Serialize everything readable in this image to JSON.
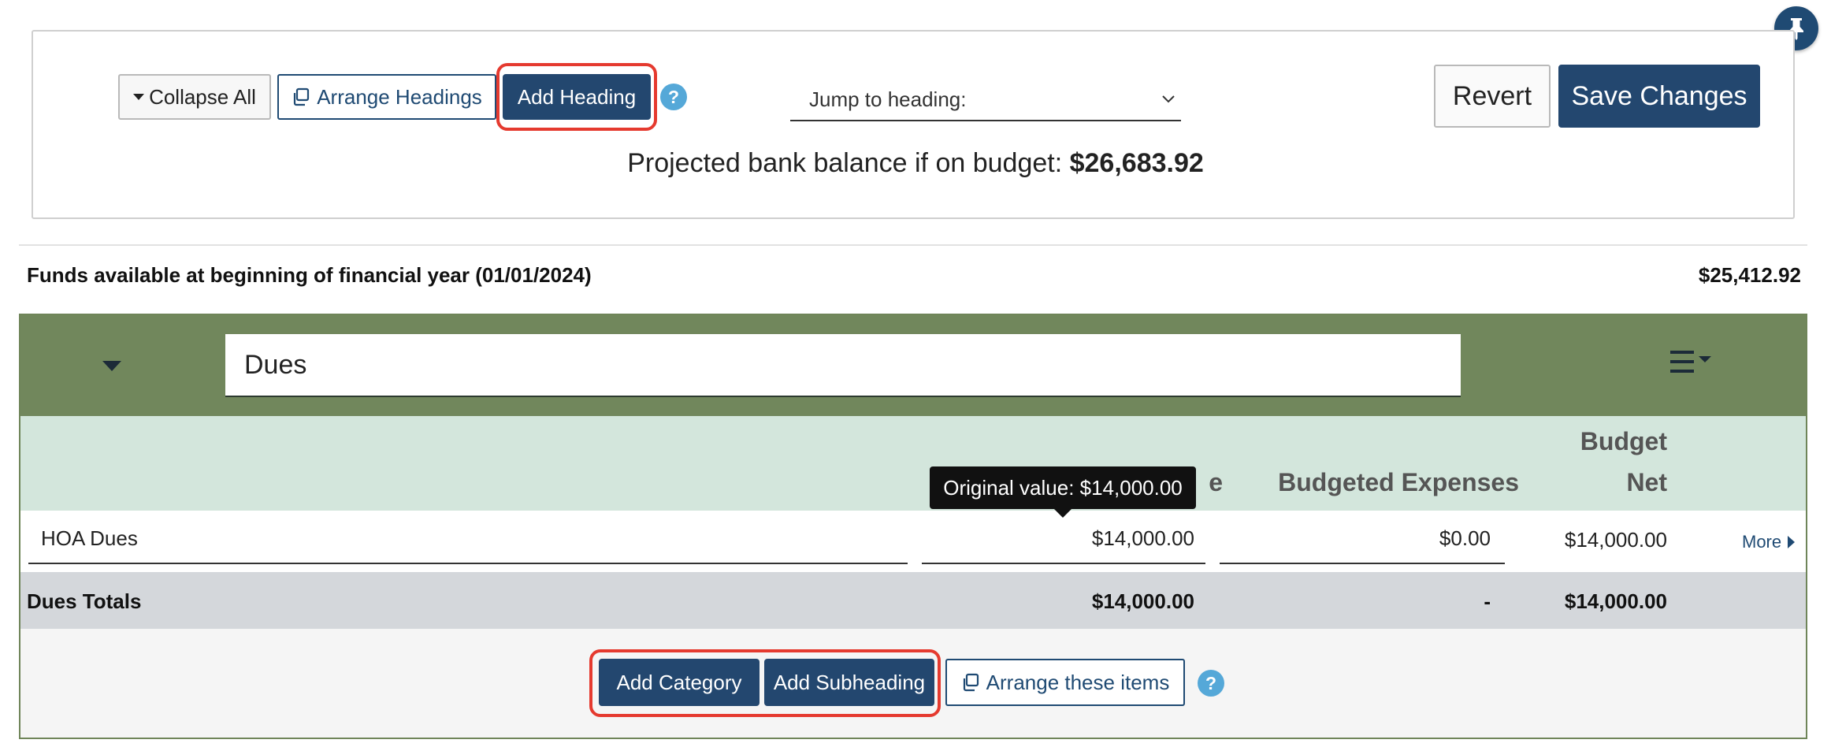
{
  "toolbar": {
    "collapse_all_label": "Collapse All",
    "arrange_headings_label": "Arrange Headings",
    "add_heading_label": "Add Heading",
    "help_label": "?",
    "jump_to_heading_label": "Jump to heading:",
    "revert_label": "Revert",
    "save_changes_label": "Save Changes",
    "projected_label": "Projected bank balance if on budget:",
    "projected_value": "$26,683.92"
  },
  "funds": {
    "label": "Funds available at beginning of financial year (01/01/2024)",
    "value": "$25,412.92"
  },
  "section": {
    "heading_value": "Dues",
    "columns": {
      "budgeted_income_fragment": "e",
      "budgeted_expenses": "Budgeted Expenses",
      "budget_net_line1": "Budget",
      "budget_net_line2": "Net"
    },
    "rows": [
      {
        "category": "HOA Dues",
        "income": "$14,000.00",
        "expenses": "$0.00",
        "net": "$14,000.00",
        "more_label": "More"
      }
    ],
    "totals": {
      "label": "Dues Totals",
      "income": "$14,000.00",
      "expenses": "-",
      "net": "$14,000.00"
    },
    "footer": {
      "add_category_label": "Add Category",
      "add_subheading_label": "Add Subheading",
      "arrange_items_label": "Arrange these items",
      "help_label": "?"
    }
  },
  "tooltip": {
    "text": "Original value: $14,000.00"
  },
  "colors": {
    "primary": "#23476f",
    "section_header": "#71875c",
    "column_header": "#d3e6dc",
    "totals_row": "#d4d7db",
    "highlight": "#e53a2f",
    "help": "#55a8d8"
  }
}
